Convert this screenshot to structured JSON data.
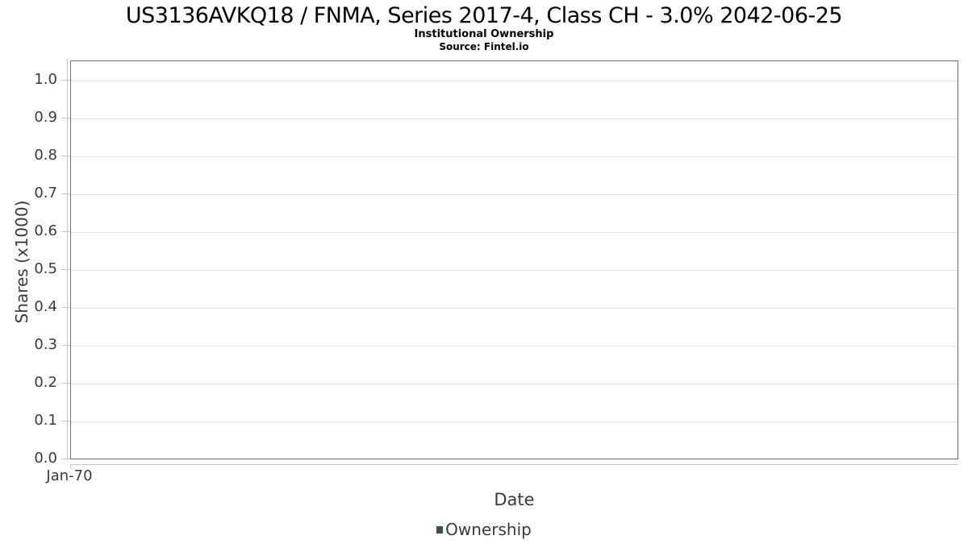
{
  "header": {
    "title": "US3136AVKQ18 / FNMA, Series 2017-4, Class CH - 3.0% 2042-06-25",
    "subtitle": "Institutional Ownership",
    "source": "Source: Fintel.io"
  },
  "chart_data": {
    "type": "bar",
    "title": "US3136AVKQ18 / FNMA, Series 2017-4, Class CH - 3.0% 2042-06-25",
    "subtitle": "Institutional Ownership",
    "source": "Source: Fintel.io",
    "xlabel": "Date",
    "ylabel": "Shares (x1000)",
    "x_ticks": [
      "Jan-70"
    ],
    "y_ticks": [
      "0.0",
      "0.1",
      "0.2",
      "0.3",
      "0.4",
      "0.5",
      "0.6",
      "0.7",
      "0.8",
      "0.9",
      "1.0"
    ],
    "ylim": [
      0,
      1.05
    ],
    "grid": true,
    "legend_position": "bottom",
    "series": [
      {
        "name": "Ownership",
        "color": "#2d5a3a",
        "x": [],
        "values": []
      }
    ]
  },
  "colors": {
    "plot_border": "#6f6f6f",
    "gridline": "#e2e2e2",
    "axis_line": "#c6c6c6",
    "axis_text": "#3a3a3a",
    "title_text": "#000000",
    "legend_green": "#2d5a3a"
  }
}
